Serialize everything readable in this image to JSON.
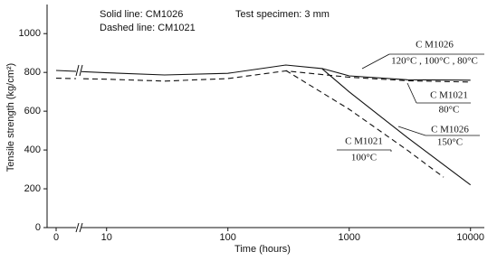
{
  "chart_data": {
    "type": "line",
    "annotations": [
      "Solid line: CM1026",
      "Dashed line: CM1021",
      "Test specimen: 3 mm"
    ],
    "x_label": "Time (hours)",
    "y_label": "Tensile strength (kg/cm²)",
    "x_scale": "log",
    "axis_break": true,
    "xlim": [
      6,
      13000
    ],
    "ylim": [
      0,
      1150
    ],
    "xticks": [
      0,
      10,
      100,
      1000,
      10000
    ],
    "yticks": [
      0,
      200,
      400,
      600,
      800,
      1000
    ],
    "series": [
      {
        "name": "C M1026",
        "condition": "120°C , 100°C , 80°C",
        "color": "#111111",
        "dash": false,
        "x": [
          0,
          10,
          30,
          100,
          300,
          600,
          1000,
          3000,
          10000
        ],
        "values": [
          810,
          798,
          787,
          795,
          838,
          820,
          782,
          762,
          760
        ]
      },
      {
        "name": "C M1021",
        "condition": "80°C",
        "color": "#111111",
        "dash": true,
        "x": [
          0,
          10,
          30,
          100,
          300,
          1000,
          3000,
          10000
        ],
        "values": [
          770,
          765,
          755,
          768,
          808,
          775,
          757,
          750
        ]
      },
      {
        "name": "C M1026",
        "condition": "150°C",
        "color": "#111111",
        "dash": false,
        "x": [
          600,
          1000,
          3000,
          10000
        ],
        "values": [
          818,
          700,
          465,
          220
        ]
      },
      {
        "name": "C M1021",
        "condition": "100°C",
        "color": "#111111",
        "dash": true,
        "x": [
          300,
          1000,
          3000,
          6000
        ],
        "values": [
          810,
          610,
          400,
          260
        ]
      }
    ]
  }
}
